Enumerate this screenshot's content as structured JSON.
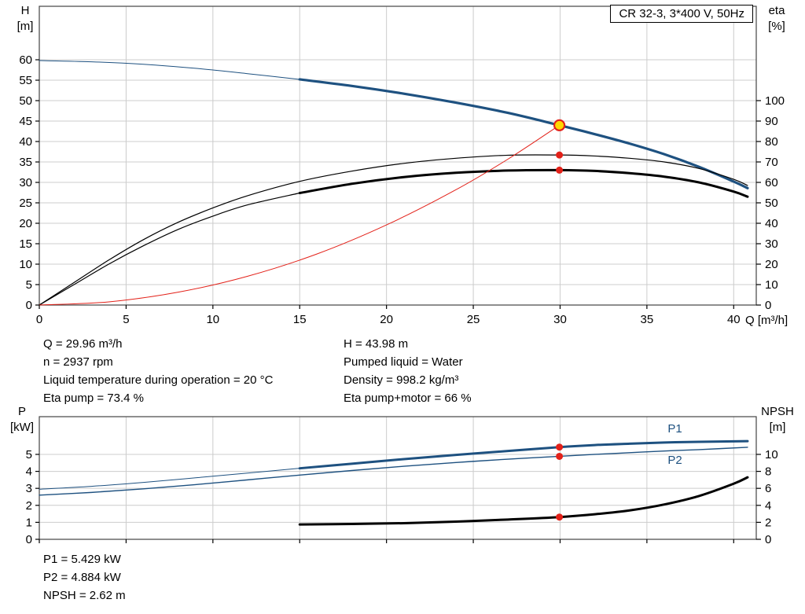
{
  "colors": {
    "curve_blue": "#1e5180",
    "curve_black": "#000000",
    "curve_red": "#e32119",
    "marker": "#e32119",
    "duty_fill": "#ffd800"
  },
  "chart_data": [
    {
      "type": "line",
      "title": "CR 32-3, 3*400 V, 50Hz",
      "x": {
        "min": 0,
        "max": 41.3,
        "ticks": [
          0,
          5,
          10,
          15,
          20,
          25,
          30,
          35,
          40
        ],
        "label": "Q [m³/h]"
      },
      "y_left": {
        "min": 0,
        "max": 73.08,
        "ticks": [
          0,
          5,
          10,
          15,
          20,
          25,
          30,
          35,
          40,
          45,
          50,
          55,
          60
        ],
        "label": "H",
        "unit": "[m]"
      },
      "y_right": {
        "min": 0,
        "max": 146.15,
        "ticks": [
          0,
          10,
          20,
          30,
          40,
          50,
          60,
          70,
          80,
          90,
          100
        ],
        "label": "eta",
        "unit": "[%]"
      },
      "series": [
        {
          "name": "head-curve-extension",
          "axis": "left",
          "color": "#1e5180",
          "width": 1,
          "points": [
            [
              0,
              59.8
            ],
            [
              3,
              59.5
            ],
            [
              6,
              58.9
            ],
            [
              9,
              57.9
            ],
            [
              12,
              56.6
            ],
            [
              15,
              55.2
            ]
          ]
        },
        {
          "name": "head-curve",
          "axis": "left",
          "color": "#1e5180",
          "width": 3.2,
          "points": [
            [
              15,
              55.2
            ],
            [
              18,
              53.6
            ],
            [
              21,
              51.7
            ],
            [
              24,
              49.5
            ],
            [
              27,
              47.0
            ],
            [
              29.96,
              43.98
            ],
            [
              32,
              41.8
            ],
            [
              34,
              39.5
            ],
            [
              36,
              36.9
            ],
            [
              38,
              33.8
            ],
            [
              40,
              30.2
            ],
            [
              40.8,
              28.6
            ]
          ]
        },
        {
          "name": "eta-pump-curve",
          "axis": "right",
          "color": "#000000",
          "width": 1.2,
          "points": [
            [
              0,
              0
            ],
            [
              2,
              11
            ],
            [
              4,
              22
            ],
            [
              6,
              32
            ],
            [
              8,
              40.5
            ],
            [
              10,
              47.5
            ],
            [
              12,
              53.5
            ],
            [
              15,
              60.5
            ],
            [
              18,
              65.5
            ],
            [
              21,
              69.3
            ],
            [
              24,
              71.8
            ],
            [
              27,
              73.3
            ],
            [
              29.96,
              73.4
            ],
            [
              32,
              72.9
            ],
            [
              34,
              71.8
            ],
            [
              36,
              70
            ],
            [
              38,
              66.8
            ],
            [
              40,
              61.5
            ],
            [
              40.8,
              58.5
            ]
          ]
        },
        {
          "name": "eta-pump-motor-extension",
          "axis": "right",
          "color": "#000000",
          "width": 1.2,
          "points": [
            [
              0,
              0
            ],
            [
              2,
              10
            ],
            [
              4,
              20
            ],
            [
              6,
              29
            ],
            [
              8,
              37
            ],
            [
              10,
              43.5
            ],
            [
              12,
              49
            ],
            [
              15,
              54.8
            ]
          ]
        },
        {
          "name": "eta-pump-motor-curve",
          "axis": "right",
          "color": "#000000",
          "width": 3,
          "points": [
            [
              15,
              54.8
            ],
            [
              18,
              59.3
            ],
            [
              21,
              62.6
            ],
            [
              24,
              64.7
            ],
            [
              27,
              65.8
            ],
            [
              29.96,
              66
            ],
            [
              32,
              65.6
            ],
            [
              34,
              64.5
            ],
            [
              36,
              62.8
            ],
            [
              38,
              60
            ],
            [
              40,
              55.5
            ],
            [
              40.8,
              53
            ]
          ]
        },
        {
          "name": "system-curve",
          "axis": "left",
          "color": "#e32119",
          "width": 1,
          "points": [
            [
              0,
              0
            ],
            [
              4,
              0.78
            ],
            [
              8,
              3.14
            ],
            [
              12,
              7.05
            ],
            [
              16,
              12.5
            ],
            [
              20,
              19.6
            ],
            [
              24,
              28.2
            ],
            [
              27,
              35.7
            ],
            [
              29.96,
              43.98
            ]
          ]
        }
      ],
      "markers": [
        {
          "q": 29.96,
          "v": 43.98,
          "axis": "left",
          "type": "duty"
        },
        {
          "q": 29.96,
          "v": 73.4,
          "axis": "right",
          "type": "point"
        },
        {
          "q": 29.96,
          "v": 66,
          "axis": "right",
          "type": "point"
        }
      ],
      "curve_labels": []
    },
    {
      "type": "line",
      "x": {
        "min": 0,
        "max": 41.3,
        "ticks": [
          0,
          5,
          10,
          15,
          20,
          25,
          30,
          35,
          40
        ]
      },
      "y_left": {
        "min": 0,
        "max": 7.22,
        "ticks": [
          0,
          1,
          2,
          3,
          4,
          5
        ],
        "label": "P",
        "unit": "[kW]"
      },
      "y_right": {
        "min": 0,
        "max": 14.44,
        "ticks": [
          0,
          2,
          4,
          6,
          8,
          10
        ],
        "label": "NPSH",
        "unit": "[m]"
      },
      "series": [
        {
          "name": "p1-curve-extension",
          "axis": "left",
          "color": "#1e5180",
          "width": 1,
          "points": [
            [
              0,
              2.95
            ],
            [
              3,
              3.12
            ],
            [
              6,
              3.35
            ],
            [
              9,
              3.62
            ],
            [
              12,
              3.9
            ],
            [
              15,
              4.18
            ]
          ]
        },
        {
          "name": "p1-curve",
          "axis": "left",
          "color": "#1e5180",
          "width": 3,
          "points": [
            [
              15,
              4.18
            ],
            [
              18,
              4.45
            ],
            [
              21,
              4.72
            ],
            [
              24,
              4.97
            ],
            [
              27,
              5.2
            ],
            [
              29.96,
              5.429
            ],
            [
              32,
              5.55
            ],
            [
              34,
              5.63
            ],
            [
              36,
              5.7
            ],
            [
              38,
              5.74
            ],
            [
              40.8,
              5.78
            ]
          ]
        },
        {
          "name": "p2-curve",
          "axis": "left",
          "color": "#1e5180",
          "width": 1.4,
          "points": [
            [
              0,
              2.6
            ],
            [
              3,
              2.76
            ],
            [
              6,
              2.97
            ],
            [
              9,
              3.22
            ],
            [
              12,
              3.5
            ],
            [
              15,
              3.78
            ],
            [
              18,
              4.05
            ],
            [
              21,
              4.3
            ],
            [
              24,
              4.52
            ],
            [
              27,
              4.72
            ],
            [
              29.96,
              4.884
            ],
            [
              32,
              5.0
            ],
            [
              34,
              5.1
            ],
            [
              36,
              5.2
            ],
            [
              38,
              5.28
            ],
            [
              40.8,
              5.42
            ]
          ]
        },
        {
          "name": "npsh-curve",
          "axis": "right",
          "color": "#000000",
          "width": 3,
          "points": [
            [
              15,
              1.75
            ],
            [
              18,
              1.8
            ],
            [
              21,
              1.9
            ],
            [
              24,
              2.08
            ],
            [
              27,
              2.33
            ],
            [
              29.96,
              2.62
            ],
            [
              32,
              2.95
            ],
            [
              34,
              3.4
            ],
            [
              36,
              4.1
            ],
            [
              38,
              5.1
            ],
            [
              40,
              6.55
            ],
            [
              40.8,
              7.3
            ]
          ]
        }
      ],
      "markers": [
        {
          "q": 29.96,
          "v": 5.429,
          "axis": "left",
          "type": "point"
        },
        {
          "q": 29.96,
          "v": 4.884,
          "axis": "left",
          "type": "point"
        },
        {
          "q": 29.96,
          "v": 2.62,
          "axis": "right",
          "type": "point"
        }
      ],
      "curve_labels": [
        {
          "text": "P1",
          "q": 36.2,
          "v": 6.3,
          "axis": "left",
          "color": "#1e5180"
        },
        {
          "text": "P2",
          "q": 36.2,
          "v": 4.45,
          "axis": "left",
          "color": "#1e5180"
        }
      ]
    }
  ],
  "info": {
    "left": [
      "Q = 29.96 m³/h",
      "n = 2937 rpm",
      "Liquid temperature during operation = 20 °C",
      "Eta pump = 73.4 %"
    ],
    "right": [
      "H = 43.98 m",
      "Pumped liquid = Water",
      "Density = 998.2 kg/m³",
      "Eta pump+motor = 66 %"
    ],
    "bottom": [
      "P1 = 5.429 kW",
      "P2 = 4.884 kW",
      "NPSH = 2.62 m"
    ]
  }
}
